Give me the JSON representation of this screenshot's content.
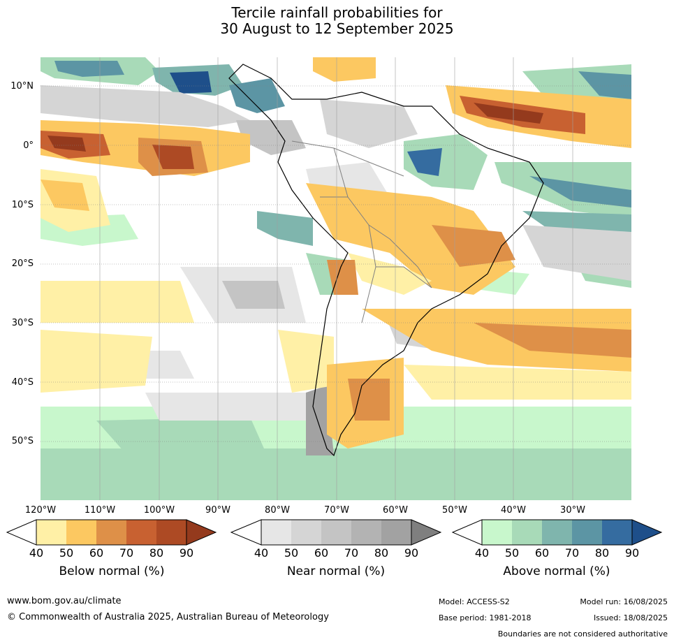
{
  "title": {
    "line1": "Tercile rainfall probabilities for",
    "line2": "30 August to 12 September 2025"
  },
  "map": {
    "latitude_labels": [
      "10°N",
      "0°",
      "10°S",
      "20°S",
      "30°S",
      "40°S",
      "50°S"
    ],
    "longitude_labels": [
      "120°W",
      "110°W",
      "100°W",
      "90°W",
      "80°W",
      "70°W",
      "60°W",
      "50°W",
      "40°W",
      "30°W"
    ]
  },
  "colorbars": {
    "below": {
      "label": "Below normal (%)",
      "ticks": [
        "40",
        "50",
        "60",
        "70",
        "80",
        "90"
      ],
      "colors": [
        "#fff0a6",
        "#fcc861",
        "#de9048",
        "#c86131",
        "#ad4a24",
        "#943a1d"
      ]
    },
    "near": {
      "label": "Near normal (%)",
      "ticks": [
        "40",
        "50",
        "60",
        "70",
        "80",
        "90"
      ],
      "colors": [
        "#e6e6e6",
        "#d5d5d5",
        "#c4c4c4",
        "#b3b3b3",
        "#a2a2a2",
        "#7f7f7f"
      ]
    },
    "above": {
      "label": "Above normal (%)",
      "ticks": [
        "40",
        "50",
        "60",
        "70",
        "80",
        "90"
      ],
      "colors": [
        "#c8f7cc",
        "#a8dab8",
        "#7fb5ad",
        "#5c95a4",
        "#356ca0",
        "#1e4f8a"
      ]
    }
  },
  "footer": {
    "website": "www.bom.gov.au/climate",
    "copyright": "© Commonwealth of Australia 2025, Australian Bureau of Meteorology",
    "model": "Model: ACCESS-S2",
    "base_period": "Base period: 1981-2018",
    "model_run": "Model run: 16/08/2025",
    "issued": "Issued: 18/08/2025",
    "disclaimer": "Boundaries are not considered authoritative"
  }
}
